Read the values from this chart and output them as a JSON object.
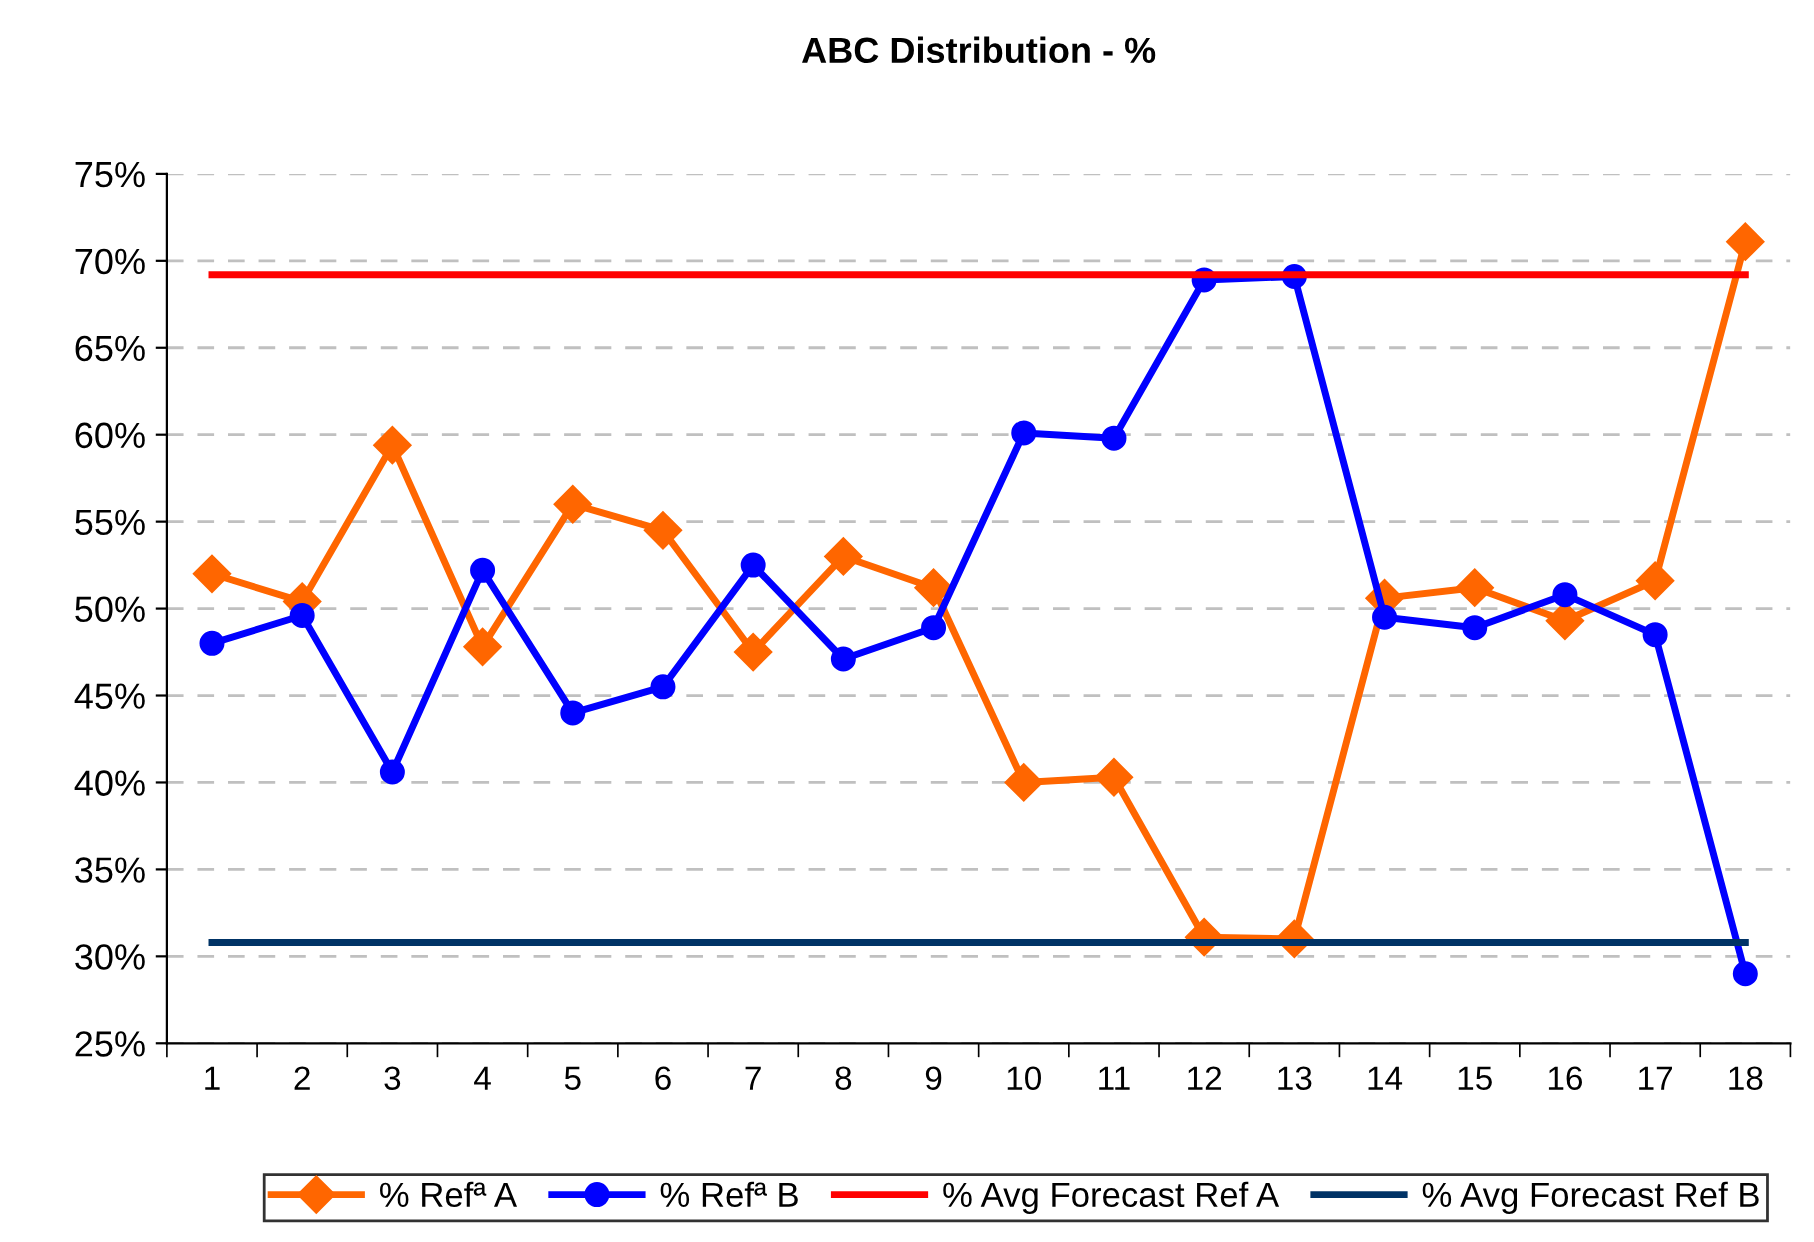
{
  "chart_data": {
    "type": "line",
    "title": "ABC Distribution - %",
    "categories": [
      "1",
      "2",
      "3",
      "4",
      "5",
      "6",
      "7",
      "8",
      "9",
      "10",
      "11",
      "12",
      "13",
      "14",
      "15",
      "16",
      "17",
      "18"
    ],
    "series": [
      {
        "name": "% Refª A",
        "color": "#ff6600",
        "marker": "diamond",
        "values": [
          52.0,
          50.4,
          59.4,
          47.8,
          56.0,
          54.5,
          47.5,
          53.0,
          51.2,
          40.0,
          40.3,
          31.1,
          31.0,
          50.6,
          51.2,
          49.3,
          51.6,
          71.1
        ]
      },
      {
        "name": "% Refª B",
        "color": "#0000ff",
        "marker": "circle",
        "values": [
          48.0,
          49.6,
          40.6,
          52.2,
          44.0,
          45.5,
          52.5,
          47.1,
          48.9,
          60.1,
          59.8,
          68.9,
          69.1,
          49.5,
          48.9,
          50.8,
          48.5,
          29.0
        ]
      },
      {
        "name": "% Avg Forecast Ref A",
        "color": "#ff0000",
        "marker": "none",
        "values": [
          69.2,
          69.2,
          69.2,
          69.2,
          69.2,
          69.2,
          69.2,
          69.2,
          69.2,
          69.2,
          69.2,
          69.2,
          69.2,
          69.2,
          69.2,
          69.2,
          69.2,
          69.2
        ]
      },
      {
        "name": "% Avg Forecast Ref B",
        "color": "#003366",
        "marker": "none",
        "values": [
          30.8,
          30.8,
          30.8,
          30.8,
          30.8,
          30.8,
          30.8,
          30.8,
          30.8,
          30.8,
          30.8,
          30.8,
          30.8,
          30.8,
          30.8,
          30.8,
          30.8,
          30.8
        ]
      }
    ],
    "ylim": [
      25,
      75
    ],
    "yticks": [
      {
        "value": 25,
        "label": "25%"
      },
      {
        "value": 30,
        "label": "30%"
      },
      {
        "value": 35,
        "label": "35%"
      },
      {
        "value": 40,
        "label": "40%"
      },
      {
        "value": 45,
        "label": "45%"
      },
      {
        "value": 50,
        "label": "50%"
      },
      {
        "value": 55,
        "label": "55%"
      },
      {
        "value": 60,
        "label": "60%"
      },
      {
        "value": 65,
        "label": "65%"
      },
      {
        "value": 70,
        "label": "70%"
      },
      {
        "value": 75,
        "label": "75%"
      }
    ],
    "grid": "y",
    "legend": "bottom",
    "line_style": "solid"
  }
}
